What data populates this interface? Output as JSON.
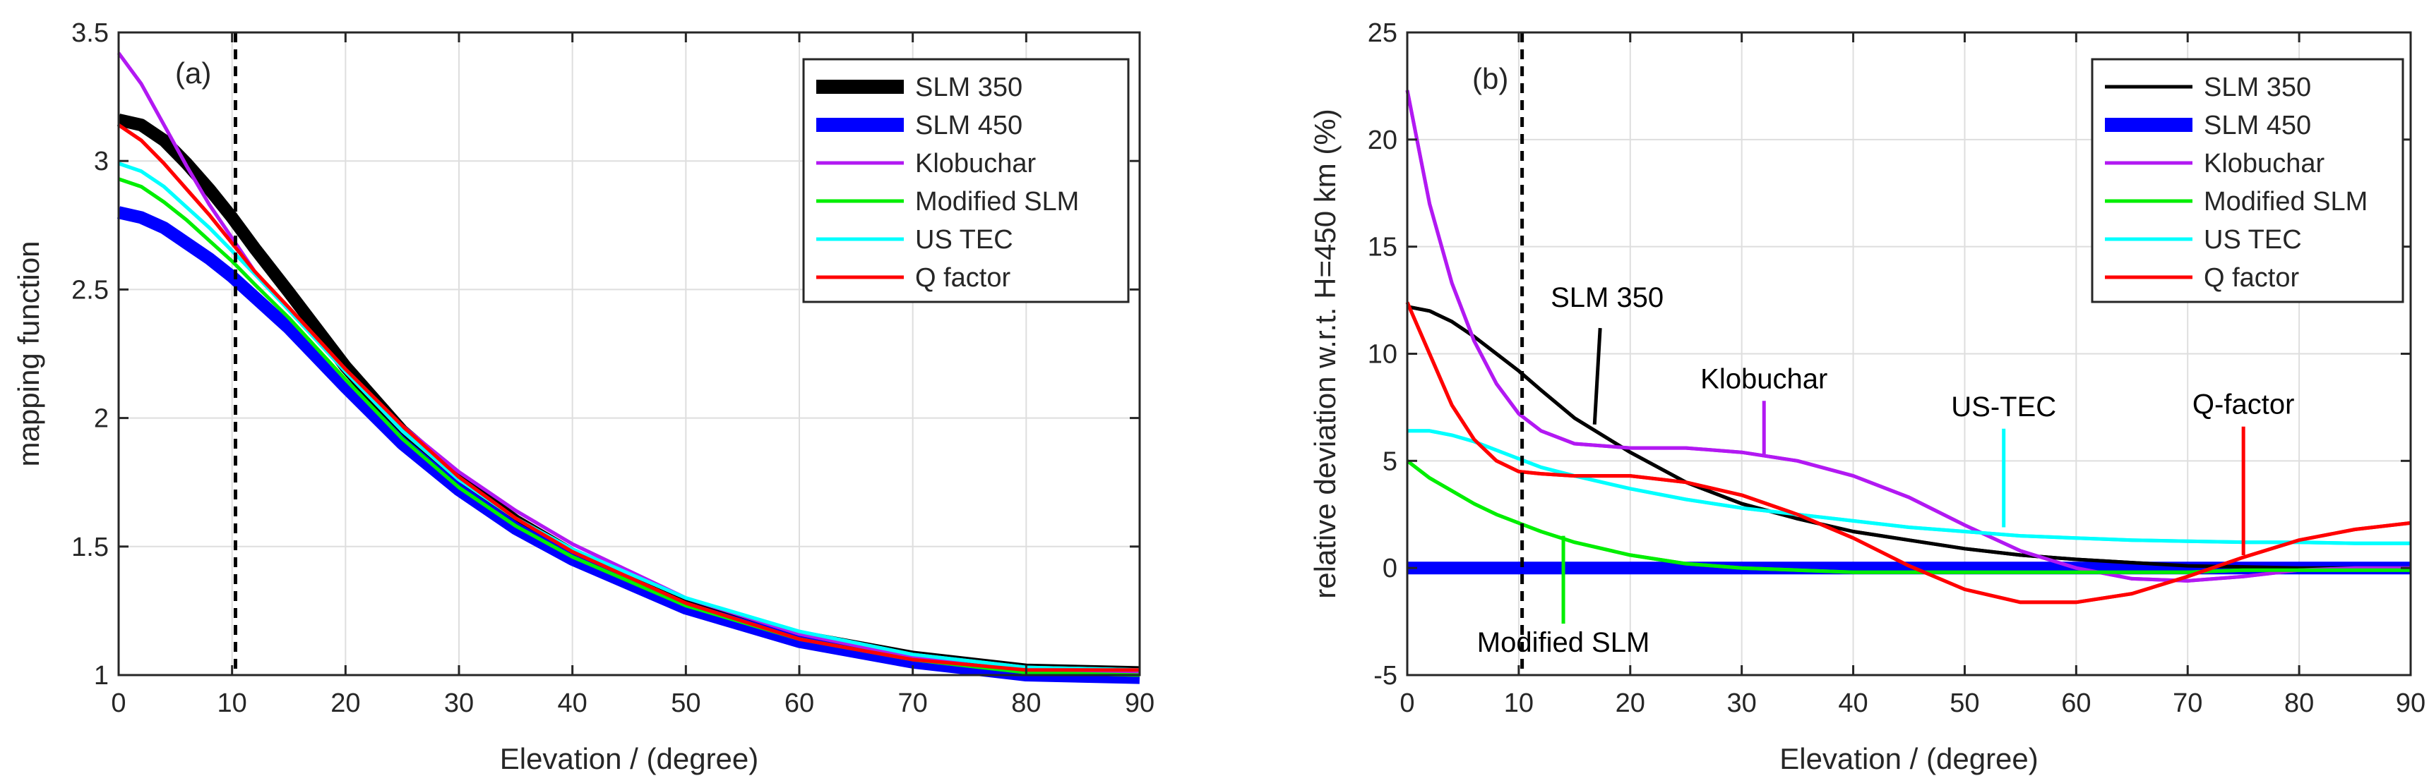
{
  "chart_data": [
    {
      "type": "line",
      "panel_label": "(a)",
      "xlabel": "Elevation / (degree)",
      "ylabel": "mapping function",
      "xlim": [
        0,
        90
      ],
      "ylim": [
        1,
        3.5
      ],
      "xticks": [
        "0",
        "10",
        "20",
        "30",
        "40",
        "50",
        "60",
        "70",
        "80",
        "90"
      ],
      "yticks": [
        "1",
        "1.5",
        "2",
        "2.5",
        "3",
        "3.5"
      ],
      "grid": true,
      "legend_position": "top-right",
      "vline_x": 10.3,
      "x": [
        0,
        2,
        4,
        6,
        8,
        10,
        12,
        15,
        20,
        25,
        30,
        35,
        40,
        50,
        60,
        70,
        80,
        90
      ],
      "series": [
        {
          "name": "SLM 350",
          "color": "#000000",
          "width": "heavy",
          "values": [
            3.16,
            3.14,
            3.08,
            2.99,
            2.89,
            2.78,
            2.66,
            2.49,
            2.2,
            1.95,
            1.76,
            1.6,
            1.47,
            1.28,
            1.15,
            1.07,
            1.02,
            1.01
          ]
        },
        {
          "name": "SLM 450",
          "color": "#0000ff",
          "width": "heavy",
          "values": [
            2.8,
            2.78,
            2.74,
            2.68,
            2.62,
            2.55,
            2.47,
            2.35,
            2.12,
            1.9,
            1.72,
            1.57,
            1.45,
            1.26,
            1.13,
            1.05,
            1.0,
            0.99
          ]
        },
        {
          "name": "Klobuchar",
          "color": "#b219f2",
          "width": "normal",
          "values": [
            3.42,
            3.3,
            3.14,
            2.98,
            2.83,
            2.7,
            2.57,
            2.42,
            2.18,
            1.97,
            1.79,
            1.64,
            1.51,
            1.3,
            1.16,
            1.07,
            1.01,
            1.01
          ]
        },
        {
          "name": "Modified SLM",
          "color": "#00ee00",
          "width": "normal",
          "values": [
            2.93,
            2.9,
            2.84,
            2.77,
            2.69,
            2.61,
            2.52,
            2.39,
            2.15,
            1.92,
            1.73,
            1.58,
            1.46,
            1.27,
            1.14,
            1.06,
            1.01,
            1.0
          ]
        },
        {
          "name": "US TEC",
          "color": "#00ffff",
          "width": "normal",
          "values": [
            2.99,
            2.96,
            2.9,
            2.82,
            2.74,
            2.65,
            2.56,
            2.42,
            2.18,
            1.95,
            1.76,
            1.61,
            1.49,
            1.3,
            1.17,
            1.08,
            1.03,
            1.02
          ]
        },
        {
          "name": "Q factor",
          "color": "#ff0000",
          "width": "normal",
          "values": [
            3.14,
            3.08,
            2.99,
            2.89,
            2.79,
            2.68,
            2.57,
            2.43,
            2.19,
            1.97,
            1.77,
            1.61,
            1.48,
            1.28,
            1.14,
            1.06,
            1.02,
            1.02
          ]
        }
      ]
    },
    {
      "type": "line",
      "panel_label": "(b)",
      "xlabel": "Elevation / (degree)",
      "ylabel": "relative deviation w.r.t. H=450 km (%)",
      "xlim": [
        0,
        90
      ],
      "ylim": [
        -5,
        25
      ],
      "xticks": [
        "0",
        "10",
        "20",
        "30",
        "40",
        "50",
        "60",
        "70",
        "80",
        "90"
      ],
      "yticks": [
        "-5",
        "0",
        "5",
        "10",
        "15",
        "20",
        "25"
      ],
      "grid": true,
      "legend_position": "top-right",
      "vline_x": 10.3,
      "x": [
        0,
        2,
        4,
        6,
        8,
        10,
        12,
        15,
        20,
        25,
        30,
        35,
        40,
        45,
        50,
        55,
        60,
        65,
        70,
        75,
        80,
        85,
        90
      ],
      "series": [
        {
          "name": "SLM 350",
          "color": "#000000",
          "width": "normal",
          "values": [
            12.2,
            12.0,
            11.5,
            10.8,
            10.0,
            9.2,
            8.3,
            7.0,
            5.4,
            4.0,
            3.0,
            2.3,
            1.7,
            1.3,
            0.9,
            0.6,
            0.4,
            0.25,
            0.1,
            0.05,
            0.0,
            0.0,
            0.0
          ]
        },
        {
          "name": "SLM 450",
          "color": "#0000ff",
          "width": "heavy",
          "values": [
            0,
            0,
            0,
            0,
            0,
            0,
            0,
            0,
            0,
            0,
            0,
            0,
            0,
            0,
            0,
            0,
            0,
            0,
            0,
            0,
            0,
            0,
            0
          ]
        },
        {
          "name": "Klobuchar",
          "color": "#b219f2",
          "width": "normal",
          "values": [
            22.3,
            17.0,
            13.3,
            10.6,
            8.6,
            7.2,
            6.4,
            5.8,
            5.6,
            5.6,
            5.4,
            5.0,
            4.3,
            3.3,
            2.0,
            0.8,
            0.0,
            -0.5,
            -0.6,
            -0.4,
            -0.1,
            0.0,
            0.0
          ]
        },
        {
          "name": "Modified SLM",
          "color": "#00ee00",
          "width": "normal",
          "values": [
            5.0,
            4.2,
            3.6,
            3.0,
            2.5,
            2.1,
            1.7,
            1.2,
            0.6,
            0.2,
            0.0,
            -0.1,
            -0.2,
            -0.2,
            -0.2,
            -0.2,
            -0.2,
            -0.2,
            -0.2,
            -0.1,
            -0.1,
            -0.1,
            -0.1
          ]
        },
        {
          "name": "US TEC",
          "color": "#00ffff",
          "width": "normal",
          "values": [
            6.4,
            6.4,
            6.2,
            5.9,
            5.5,
            5.1,
            4.7,
            4.3,
            3.7,
            3.2,
            2.8,
            2.5,
            2.2,
            1.9,
            1.7,
            1.5,
            1.4,
            1.3,
            1.25,
            1.2,
            1.2,
            1.15,
            1.15
          ]
        },
        {
          "name": "Q factor",
          "color": "#ff0000",
          "width": "normal",
          "values": [
            12.4,
            10.0,
            7.6,
            6.0,
            5.0,
            4.5,
            4.4,
            4.3,
            4.3,
            4.0,
            3.4,
            2.5,
            1.4,
            0.1,
            -1.0,
            -1.6,
            -1.6,
            -1.2,
            -0.4,
            0.5,
            1.3,
            1.8,
            2.1
          ]
        }
      ],
      "annotations": [
        {
          "text": "SLM 350",
          "color": "#000000",
          "tip": [
            16.8,
            6.7
          ],
          "anchor": [
            17.3,
            11.2
          ]
        },
        {
          "text": "Klobuchar",
          "color": "#b219f2",
          "tip": [
            32.0,
            5.3
          ],
          "anchor": [
            32.0,
            7.8
          ]
        },
        {
          "text": "US-TEC",
          "color": "#00ffff",
          "tip": [
            53.5,
            1.9
          ],
          "anchor": [
            53.5,
            6.5
          ]
        },
        {
          "text": "Q-factor",
          "color": "#ff0000",
          "tip": [
            75.0,
            0.6
          ],
          "anchor": [
            75.0,
            6.6
          ]
        },
        {
          "text": "Modified SLM",
          "color": "#00ee00",
          "tip": [
            14.0,
            1.5
          ],
          "anchor": [
            14.0,
            -2.6
          ]
        }
      ]
    }
  ]
}
